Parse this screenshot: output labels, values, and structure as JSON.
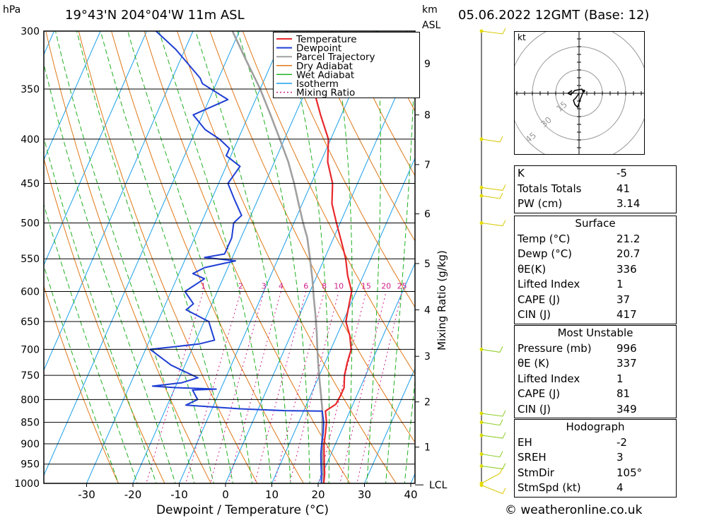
{
  "header": {
    "location": "19°43'N  204°04'W  11m  ASL",
    "datetime": "05.06.2022  12GMT  (Base: 12)",
    "pressure_unit": "hPa",
    "height_unit_line1": "km",
    "height_unit_line2": "ASL",
    "hodograph_unit": "kt"
  },
  "chart_data": {
    "type": "line",
    "title": "",
    "xlabel": "Dewpoint / Temperature (°C)",
    "ylabel": "hPa",
    "mixing_ratio_label": "Mixing Ratio (g/kg)",
    "x_ticks": [
      -30,
      -20,
      -10,
      0,
      10,
      20,
      30,
      40
    ],
    "pressure_levels": [
      300,
      350,
      400,
      450,
      500,
      550,
      600,
      650,
      700,
      750,
      800,
      850,
      900,
      950,
      1000
    ],
    "height_ticks": [
      {
        "km": "1",
        "p": 908
      },
      {
        "km": "2",
        "p": 805
      },
      {
        "km": "3",
        "p": 713
      },
      {
        "km": "4",
        "p": 630
      },
      {
        "km": "5",
        "p": 557
      },
      {
        "km": "6",
        "p": 488
      },
      {
        "km": "7",
        "p": 428
      },
      {
        "km": "8",
        "p": 375
      },
      {
        "km": "9",
        "p": 327
      }
    ],
    "lcl_label": "LCL",
    "lcl_pressure": 1004,
    "mixing_ratio_values": [
      "1",
      "2",
      "3",
      "4",
      "6",
      "8",
      "10",
      "15",
      "20",
      "25"
    ],
    "legend": [
      "Temperature",
      "Dewpoint",
      "Parcel Trajectory",
      "Dry Adiabat",
      "Wet Adiabat",
      "Isotherm",
      "Mixing Ratio"
    ],
    "legend_placement": "top-center",
    "colors": {
      "temperature": "#e8282c",
      "dewpoint": "#1f3fd4",
      "parcel": "#a0a0a0",
      "dry_adiabat": "#e07818",
      "wet_adiabat": "#20b020",
      "isotherm": "#1aa0e8",
      "mixing_ratio": "#d0208a"
    },
    "series": [
      {
        "name": "Temperature",
        "points": [
          [
            21.2,
            1000
          ],
          [
            20.5,
            975
          ],
          [
            19.5,
            950
          ],
          [
            18.5,
            925
          ],
          [
            17.5,
            900
          ],
          [
            16.8,
            875
          ],
          [
            16.0,
            850
          ],
          [
            14.7,
            825
          ],
          [
            16.3,
            810
          ],
          [
            16.5,
            790
          ],
          [
            16.5,
            775
          ],
          [
            15.4,
            750
          ],
          [
            14.8,
            725
          ],
          [
            14.4,
            700
          ],
          [
            12.8,
            675
          ],
          [
            10.6,
            650
          ],
          [
            9.8,
            625
          ],
          [
            9.0,
            600
          ],
          [
            6.6,
            575
          ],
          [
            4.6,
            550
          ],
          [
            2.0,
            525
          ],
          [
            -0.8,
            500
          ],
          [
            -3.6,
            475
          ],
          [
            -5.4,
            450
          ],
          [
            -8.5,
            425
          ],
          [
            -10.5,
            400
          ],
          [
            -14.5,
            375
          ],
          [
            -18.5,
            350
          ],
          [
            -24.0,
            325
          ],
          [
            -28.0,
            310
          ],
          [
            -29.8,
            300
          ]
        ]
      },
      {
        "name": "Dewpoint",
        "points": [
          [
            20.7,
            1000
          ],
          [
            19.8,
            975
          ],
          [
            18.8,
            950
          ],
          [
            17.8,
            925
          ],
          [
            17.0,
            900
          ],
          [
            16.3,
            875
          ],
          [
            15.4,
            850
          ],
          [
            14.0,
            825
          ],
          [
            6.0,
            824
          ],
          [
            -4.0,
            820
          ],
          [
            -16.0,
            812
          ],
          [
            -14.0,
            800
          ],
          [
            -16.0,
            780
          ],
          [
            -11.0,
            778
          ],
          [
            -14.0,
            777
          ],
          [
            -20.0,
            775
          ],
          [
            -25.0,
            772
          ],
          [
            -19.0,
            765
          ],
          [
            -16.0,
            755
          ],
          [
            -23.0,
            730
          ],
          [
            -29.0,
            700
          ],
          [
            -19.0,
            690
          ],
          [
            -16.0,
            683
          ],
          [
            -19.0,
            650
          ],
          [
            -25.0,
            630
          ],
          [
            -24.0,
            620
          ],
          [
            -27.0,
            600
          ],
          [
            -24.0,
            580
          ],
          [
            -27.0,
            572
          ],
          [
            -25.0,
            563
          ],
          [
            -19.0,
            553
          ],
          [
            -26.0,
            548
          ],
          [
            -22.0,
            543
          ],
          [
            -22.0,
            520
          ],
          [
            -23.0,
            500
          ],
          [
            -22.0,
            490
          ],
          [
            -25.0,
            470
          ],
          [
            -28.0,
            450
          ],
          [
            -27.0,
            430
          ],
          [
            -31.0,
            418
          ],
          [
            -31.0,
            410
          ],
          [
            -34.0,
            400
          ],
          [
            -38.0,
            390
          ],
          [
            -42.0,
            375
          ],
          [
            -36.0,
            360
          ],
          [
            -43.0,
            345
          ],
          [
            -44.0,
            340
          ],
          [
            -52.0,
            315
          ],
          [
            -58.0,
            300
          ]
        ]
      },
      {
        "name": "Parcel Trajectory",
        "points": [
          [
            21.2,
            1000
          ],
          [
            20.0,
            970
          ],
          [
            18.7,
            940
          ],
          [
            17.5,
            910
          ],
          [
            16.3,
            880
          ],
          [
            15.1,
            850
          ],
          [
            13.8,
            820
          ],
          [
            12.2,
            790
          ],
          [
            10.5,
            760
          ],
          [
            8.8,
            730
          ],
          [
            7.1,
            700
          ],
          [
            5.4,
            670
          ],
          [
            3.5,
            640
          ],
          [
            1.4,
            610
          ],
          [
            -0.7,
            580
          ],
          [
            -3.1,
            550
          ],
          [
            -5.7,
            520
          ],
          [
            -8.0,
            500
          ],
          [
            -10.8,
            475
          ],
          [
            -13.7,
            450
          ],
          [
            -17.0,
            425
          ],
          [
            -21.0,
            400
          ],
          [
            -25.3,
            375
          ],
          [
            -30.0,
            350
          ],
          [
            -35.6,
            325
          ],
          [
            -41.5,
            300
          ]
        ]
      }
    ]
  },
  "hodograph": {
    "unit": "kt",
    "ring_labels": [
      "15",
      "30",
      "45"
    ],
    "trace": [
      [
        0,
        0
      ],
      [
        -2,
        -3
      ],
      [
        -4,
        -5
      ],
      [
        -3,
        -8
      ],
      [
        -1,
        -10
      ],
      [
        1,
        -4
      ],
      [
        3,
        1
      ],
      [
        2,
        3
      ],
      [
        -3,
        2
      ],
      [
        -6,
        -1
      ],
      [
        -8,
        0
      ],
      [
        -5,
        2
      ]
    ]
  },
  "indices": [
    {
      "label": "K",
      "value": "-5"
    },
    {
      "label": "Totals Totals",
      "value": "41"
    },
    {
      "label": "PW (cm)",
      "value": "3.14"
    }
  ],
  "surface": {
    "title": "Surface",
    "rows": [
      {
        "label": "Temp (°C)",
        "value": "21.2"
      },
      {
        "label": "Dewp (°C)",
        "value": "20.7"
      },
      {
        "label": "θE(K)",
        "value": "336"
      },
      {
        "label": "Lifted Index",
        "value": "1"
      },
      {
        "label": "CAPE (J)",
        "value": "37"
      },
      {
        "label": "CIN (J)",
        "value": "417"
      }
    ]
  },
  "most_unstable": {
    "title": "Most Unstable",
    "rows": [
      {
        "label": "Pressure (mb)",
        "value": "996"
      },
      {
        "label": "θE (K)",
        "value": "337"
      },
      {
        "label": "Lifted Index",
        "value": "1"
      },
      {
        "label": "CAPE (J)",
        "value": "81"
      },
      {
        "label": "CIN (J)",
        "value": "349"
      }
    ]
  },
  "hodograph_table": {
    "title": "Hodograph",
    "rows": [
      {
        "label": "EH",
        "value": "-2"
      },
      {
        "label": "SREH",
        "value": "3"
      },
      {
        "label": "StmDir",
        "value": "105°"
      },
      {
        "label": "StmSpd (kt)",
        "value": "4"
      }
    ]
  },
  "wind_profile_pressures": [
    300,
    400,
    455,
    465,
    500,
    700,
    830,
    850,
    880,
    925,
    955,
    1000,
    1005
  ],
  "footer": "© weatheronline.co.uk"
}
